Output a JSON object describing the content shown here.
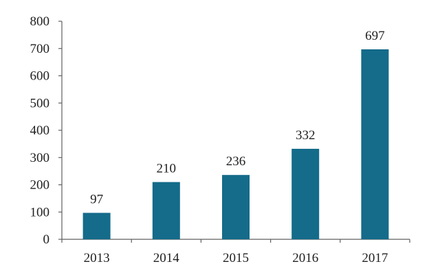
{
  "chart_data": {
    "type": "bar",
    "categories": [
      "2013",
      "2014",
      "2015",
      "2016",
      "2017"
    ],
    "values": [
      97,
      210,
      236,
      332,
      697
    ],
    "data_labels": [
      "97",
      "210",
      "236",
      "332",
      "697"
    ],
    "ylim": [
      0,
      800
    ],
    "y_ticks": [
      0,
      100,
      200,
      300,
      400,
      500,
      600,
      700,
      800
    ],
    "y_tick_labels": [
      "0",
      "100",
      "200",
      "300",
      "400",
      "500",
      "600",
      "700",
      "800"
    ],
    "grid": false,
    "legend": false,
    "colors": {
      "bar": "#146b8a",
      "axis": "#5f5f5f",
      "text": "#1f1f1f"
    }
  }
}
